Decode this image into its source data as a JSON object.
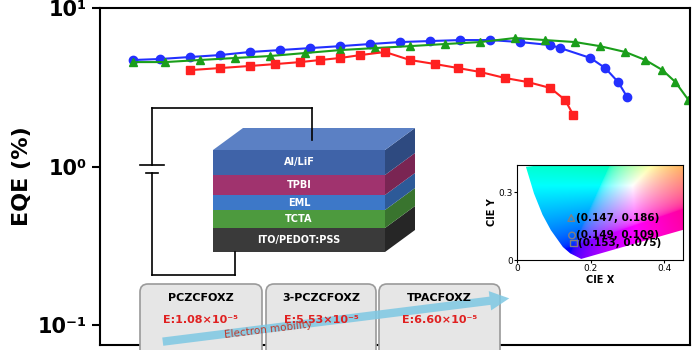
{
  "chart_data": {
    "type": "line",
    "ylabel": "EQE (%)",
    "log": "y",
    "tick_labels": "y",
    "xlim": [
      0,
      100
    ],
    "xticks": [],
    "ylim": [
      0.075,
      10
    ],
    "yticks": [
      {
        "value": 0.1,
        "label": "10⁻¹"
      },
      {
        "value": 1,
        "label": "10⁰"
      },
      {
        "value": 10,
        "label": "10¹"
      }
    ],
    "series": [
      {
        "color": "#2330ff",
        "marker": "circle",
        "x": [
          5.6,
          10.2,
          15.3,
          20.3,
          25.4,
          30.5,
          35.6,
          40.7,
          45.8,
          50.8,
          55.9,
          61.0,
          66.1,
          71.2,
          76.3,
          78.0,
          83.1,
          85.6,
          87.8,
          89.3
        ],
        "values": [
          4.7,
          4.77,
          4.91,
          5.05,
          5.28,
          5.43,
          5.59,
          5.75,
          5.93,
          6.1,
          6.19,
          6.28,
          6.28,
          6.1,
          5.84,
          5.59,
          4.84,
          4.18,
          3.41,
          2.75
        ]
      },
      {
        "color": "#1a9e1a",
        "marker": "triangle",
        "x": [
          5.6,
          11.0,
          16.9,
          22.9,
          28.8,
          34.7,
          40.7,
          46.6,
          52.5,
          58.5,
          64.4,
          70.3,
          75.4,
          80.5,
          84.7,
          89.0,
          92.4,
          95.3,
          97.5,
          99.7
        ],
        "values": [
          4.56,
          4.56,
          4.7,
          4.84,
          4.98,
          5.2,
          5.43,
          5.59,
          5.75,
          5.93,
          6.1,
          6.47,
          6.28,
          6.1,
          5.75,
          5.28,
          4.7,
          4.06,
          3.41,
          2.63
        ]
      },
      {
        "color": "#ff2020",
        "marker": "square",
        "x": [
          15.3,
          20.3,
          25.4,
          29.7,
          33.9,
          37.3,
          40.7,
          44.1,
          48.3,
          52.5,
          56.8,
          60.7,
          64.4,
          68.6,
          72.5,
          76.3,
          78.8,
          80.2
        ],
        "values": [
          4.06,
          4.18,
          4.31,
          4.43,
          4.56,
          4.7,
          4.84,
          5.05,
          5.28,
          4.7,
          4.43,
          4.18,
          3.95,
          3.62,
          3.41,
          3.13,
          2.63,
          2.11
        ]
      }
    ]
  },
  "cie_inset": {
    "type": "scatter",
    "xlabel": "CIE X",
    "ylabel": "CIE Y",
    "xlim": [
      0,
      0.45
    ],
    "ylim": [
      0,
      0.42
    ],
    "xticks": [
      0,
      0.2,
      0.4
    ],
    "yticks": [
      0,
      0.3
    ],
    "data_labels": true,
    "series": [
      {
        "marker": "triangle",
        "color": "#808080",
        "x": [
          0.147
        ],
        "values": [
          0.186
        ],
        "value_labels": [
          "(0.147, 0.186)"
        ]
      },
      {
        "marker": "circle",
        "color": "#808080",
        "x": [
          0.149
        ],
        "values": [
          0.109
        ],
        "value_labels": [
          "(0.149, 0.109)"
        ]
      },
      {
        "marker": "square",
        "color": "#808080",
        "x": [
          0.153
        ],
        "values": [
          0.075
        ],
        "value_labels": [
          "(0.153, 0.075)"
        ]
      }
    ]
  },
  "device_stack": {
    "layers": [
      "Al/LiF",
      "TPBI",
      "EML",
      "TCTA",
      "ITO/PEDOT:PSS"
    ]
  },
  "mobility": {
    "arrow_label": "Electron mobility",
    "materials": [
      {
        "name": "PCZCFOXZ",
        "label": "E:1.08×10⁻⁵"
      },
      {
        "name": "3-PCZCFOXZ",
        "label": "E:5.53×10⁻⁵"
      },
      {
        "name": "TPACFOXZ",
        "label": "E:6.60×10⁻⁵"
      }
    ]
  }
}
